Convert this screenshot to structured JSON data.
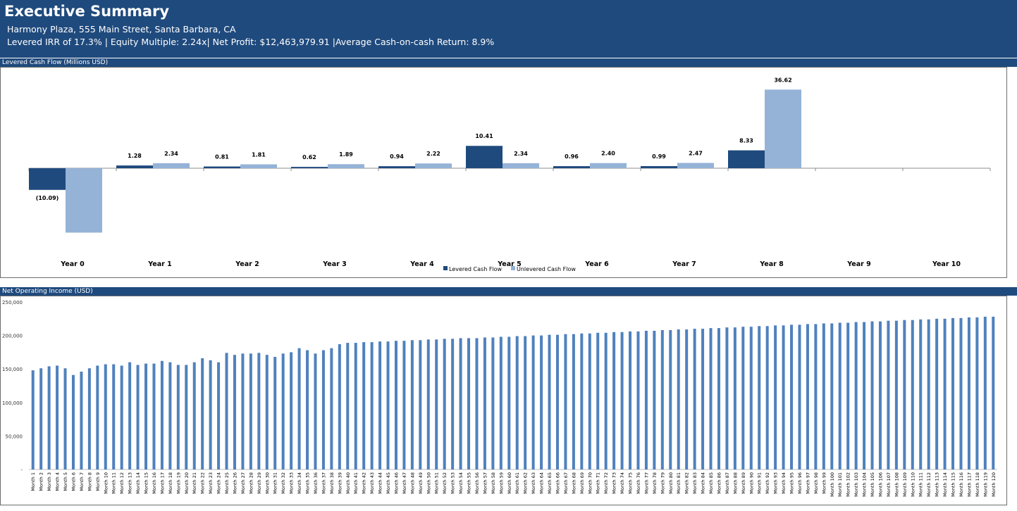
{
  "header": {
    "title": "Executive Summary",
    "address": "Harmony Plaza, 555 Main Street, Santa Barbara, CA",
    "metrics": "Levered IRR of 17.3% | Equity Multiple: 2.24x| Net Profit: $12,463,979.91 |Average Cash-on-cash Return: 8.9%"
  },
  "colors": {
    "header_bg": "#1f4a7d",
    "levered": "#1f4a7d",
    "unlevered": "#95b3d7",
    "noi_bar": "#4f81bd"
  },
  "chart_data": [
    {
      "type": "bar",
      "title": "Levered Cash Flow (Millions USD)",
      "categories": [
        "Year 0",
        "Year 1",
        "Year 2",
        "Year 3",
        "Year 4",
        "Year 5",
        "Year 6",
        "Year 7",
        "Year 8",
        "Year 9",
        "Year 10"
      ],
      "series": [
        {
          "name": "Levered Cash Flow",
          "values": [
            -10.09,
            1.28,
            0.81,
            0.62,
            0.94,
            10.41,
            0.96,
            0.99,
            8.33,
            0,
            0
          ],
          "labels": [
            "(10.09)",
            "1.28",
            "0.81",
            "0.62",
            "0.94",
            "10.41",
            "0.96",
            "0.99",
            "8.33",
            "",
            ""
          ]
        },
        {
          "name": "Unlevered Cash Flow",
          "values": [
            -30,
            2.34,
            1.81,
            1.89,
            2.22,
            2.34,
            2.4,
            2.47,
            36.62,
            0,
            0
          ],
          "labels": [
            "",
            "2.34",
            "1.81",
            "1.89",
            "2.22",
            "2.34",
            "2.40",
            "2.47",
            "36.62",
            "",
            ""
          ]
        }
      ],
      "ylim": [
        -35,
        43
      ],
      "legend": "bottom"
    },
    {
      "type": "bar",
      "title": "Net Operating Income (USD)",
      "y_ticks": [
        0,
        50000,
        100000,
        150000,
        200000,
        250000
      ],
      "y_tick_labels": [
        "-",
        "50,000",
        "100,000",
        "150,000",
        "200,000",
        "250,000"
      ],
      "ylim": [
        0,
        250000
      ],
      "categories": [
        "Month 1",
        "Month 2",
        "Month 3",
        "Month 4",
        "Month 5",
        "Month 6",
        "Month 7",
        "Month 8",
        "Month 9",
        "Month 10",
        "Month 11",
        "Month 12",
        "Month 13",
        "Month 14",
        "Month 15",
        "Month 16",
        "Month 17",
        "Month 18",
        "Month 19",
        "Month 20",
        "Month 21",
        "Month 22",
        "Month 23",
        "Month 24",
        "Month 25",
        "Month 26",
        "Month 27",
        "Month 28",
        "Month 29",
        "Month 30",
        "Month 31",
        "Month 32",
        "Month 33",
        "Month 34",
        "Month 35",
        "Month 36",
        "Month 37",
        "Month 38",
        "Month 39",
        "Month 40",
        "Month 41",
        "Month 42",
        "Month 43",
        "Month 44",
        "Month 45",
        "Month 46",
        "Month 47",
        "Month 48",
        "Month 49",
        "Month 50",
        "Month 51",
        "Month 52",
        "Month 53",
        "Month 54",
        "Month 55",
        "Month 56",
        "Month 57",
        "Month 58",
        "Month 59",
        "Month 60",
        "Month 61",
        "Month 62",
        "Month 63",
        "Month 64",
        "Month 65",
        "Month 66",
        "Month 67",
        "Month 68",
        "Month 69",
        "Month 70",
        "Month 71",
        "Month 72",
        "Month 73",
        "Month 74",
        "Month 75",
        "Month 76",
        "Month 77",
        "Month 78",
        "Month 79",
        "Month 80",
        "Month 81",
        "Month 82",
        "Month 83",
        "Month 84",
        "Month 85",
        "Month 86",
        "Month 87",
        "Month 88",
        "Month 89",
        "Month 90",
        "Month 91",
        "Month 92",
        "Month 93",
        "Month 94",
        "Month 95",
        "Month 96",
        "Month 97",
        "Month 98",
        "Month 99",
        "Month 100",
        "Month 101",
        "Month 102",
        "Month 103",
        "Month 104",
        "Month 105",
        "Month 106",
        "Month 107",
        "Month 108",
        "Month 109",
        "Month 110",
        "Month 111",
        "Month 112",
        "Month 113",
        "Month 114",
        "Month 115",
        "Month 116",
        "Month 117",
        "Month 118",
        "Month 119",
        "Month 120"
      ],
      "values": [
        148000,
        151000,
        154000,
        155000,
        151000,
        141000,
        146000,
        151000,
        155000,
        157000,
        157000,
        155000,
        160000,
        156000,
        158000,
        158000,
        162000,
        160000,
        156000,
        156000,
        160000,
        166000,
        163000,
        160000,
        174000,
        171000,
        173000,
        173000,
        174000,
        171000,
        168000,
        173000,
        175000,
        181000,
        178000,
        173000,
        178000,
        181000,
        187000,
        189000,
        189000,
        190000,
        190000,
        191000,
        191000,
        192000,
        192000,
        193000,
        193000,
        194000,
        194000,
        195000,
        195000,
        196000,
        196000,
        196000,
        197000,
        197000,
        198000,
        198000,
        199000,
        199000,
        200000,
        200000,
        201000,
        201000,
        202000,
        202000,
        203000,
        203000,
        204000,
        204000,
        205000,
        205000,
        206000,
        206000,
        207000,
        207000,
        208000,
        208000,
        209000,
        209000,
        210000,
        210000,
        211000,
        211000,
        212000,
        212000,
        213000,
        213000,
        214000,
        214000,
        215000,
        215000,
        216000,
        216000,
        217000,
        217000,
        218000,
        218000,
        219000,
        219000,
        220000,
        220000,
        221000,
        221000,
        222000,
        222000,
        223000,
        223000,
        224000,
        224000,
        225000,
        225000,
        226000,
        226000,
        227000,
        227000,
        228000,
        228000
      ]
    }
  ]
}
